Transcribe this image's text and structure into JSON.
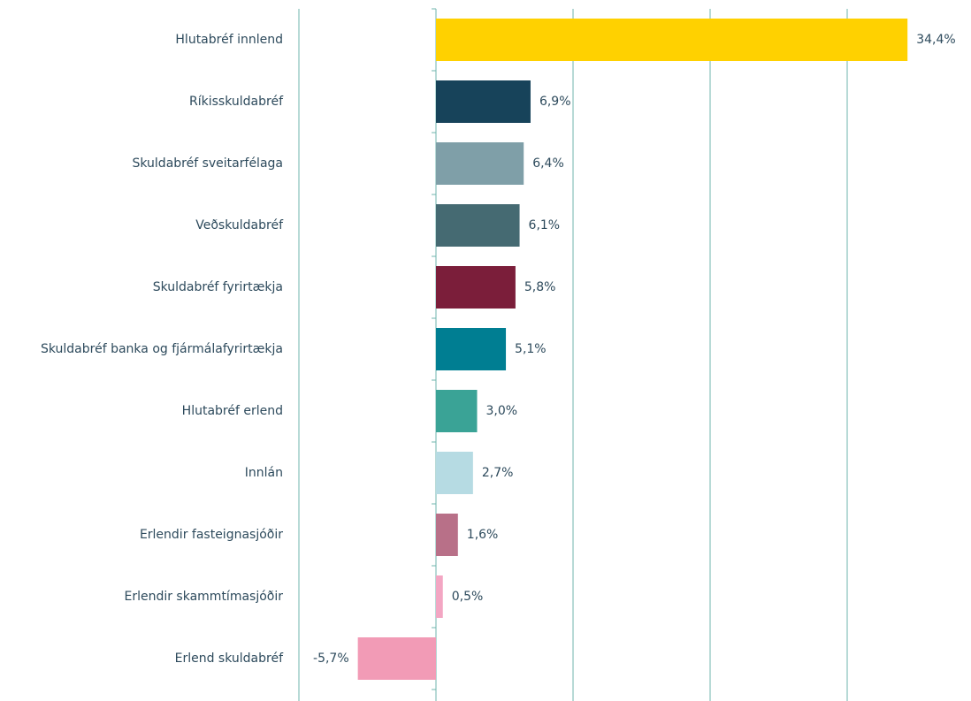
{
  "chart_data": {
    "type": "barh",
    "categories": [
      "Hlutabréf innlend",
      "Ríkisskuldabréf",
      "Skuldabréf sveitarfélaga",
      "Veðskuldabréf",
      "Skuldabréf fyrirtækja",
      "Skuldabréf banka og fjármálafyrirtækja",
      "Hlutabréf erlend",
      "Innlán",
      "Erlendir fasteignasjóðir",
      "Erlendir skammtímasjóðir",
      "Erlend skuldabréf"
    ],
    "values": [
      34.4,
      6.9,
      6.4,
      6.1,
      5.8,
      5.1,
      3.0,
      2.7,
      1.6,
      0.5,
      -5.7
    ],
    "value_labels": [
      "34,4%",
      "6,9%",
      "6,4%",
      "6,1%",
      "5,8%",
      "5,1%",
      "3,0%",
      "2,7%",
      "1,6%",
      "0,5%",
      "-5,7%"
    ],
    "colors": [
      "#ffd100",
      "#17435a",
      "#7f9fa8",
      "#456a72",
      "#7b1e3a",
      "#007e92",
      "#3aa396",
      "#b6dbe3",
      "#b87088",
      "#f3a6c3",
      "#f29bb6"
    ],
    "xlim": [
      -10,
      40
    ],
    "xticks": [
      -10,
      0,
      10,
      20,
      30
    ],
    "grid": true
  }
}
